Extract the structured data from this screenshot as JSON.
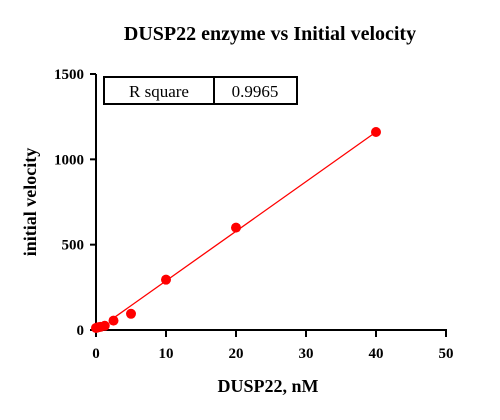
{
  "chart_data": {
    "type": "scatter",
    "title": "DUSP22 enzyme vs Initial velocity",
    "xlabel": "DUSP22, nM",
    "ylabel": "initial velocity",
    "xlim": [
      0,
      50
    ],
    "ylim": [
      0,
      1500
    ],
    "x_ticks": [
      0,
      10,
      20,
      30,
      40,
      50
    ],
    "y_ticks": [
      0,
      500,
      1000,
      1500
    ],
    "grid": false,
    "series": [
      {
        "x": [
          0,
          0.156,
          0.313,
          0.625,
          1.25,
          2.5,
          5,
          10,
          20,
          40
        ],
        "y": [
          12,
          14,
          16,
          18,
          25,
          55,
          95,
          295,
          600,
          1160
        ]
      }
    ],
    "fit_line": {
      "x": [
        2.5,
        40
      ],
      "y": [
        70,
        1160
      ]
    },
    "stats_table": {
      "label": "R square",
      "value": "0.9965"
    },
    "colors": {
      "points": "#ff0000",
      "fit_line": "#ff0000",
      "axes": "#000000"
    }
  }
}
